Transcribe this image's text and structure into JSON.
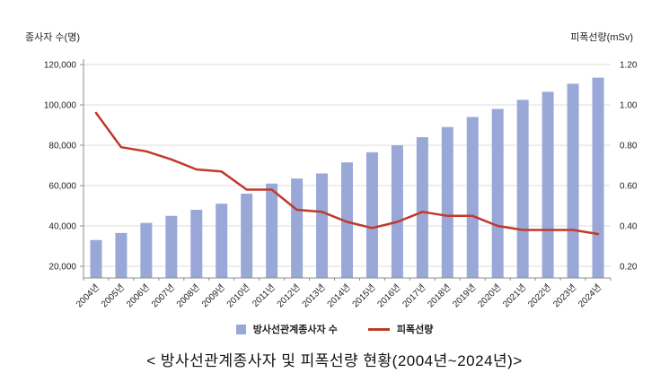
{
  "colors": {
    "bar": "#9aa8d8",
    "line": "#c0392b",
    "grid": "#dcdcdc",
    "axis": "#8c8c8c",
    "text": "#1f1f1f"
  },
  "chart_data": {
    "type": "bar+line combo",
    "title": "< 방사선관계종사자 및 피폭선량 현황(2004년~2024년)>",
    "categories": [
      "2004년",
      "2005년",
      "2006년",
      "2007년",
      "2008년",
      "2009년",
      "2010년",
      "2011년",
      "2012년",
      "2013년",
      "2014년",
      "2015년",
      "2016년",
      "2017년",
      "2018년",
      "2019년",
      "2020년",
      "2021년",
      "2022년",
      "2023년",
      "2024년"
    ],
    "series": [
      {
        "name": "방사선관계종사자 수",
        "type": "bar",
        "axis": "left",
        "color": "#9aa8d8",
        "values": [
          33000,
          36500,
          41500,
          45000,
          48000,
          51000,
          56000,
          61000,
          63500,
          66000,
          71500,
          76500,
          80000,
          84000,
          89000,
          94000,
          98000,
          102500,
          106500,
          110500,
          113500
        ]
      },
      {
        "name": "피폭선량",
        "type": "line",
        "axis": "right",
        "color": "#c0392b",
        "values": [
          0.96,
          0.79,
          0.77,
          0.73,
          0.68,
          0.67,
          0.58,
          0.58,
          0.48,
          0.47,
          0.42,
          0.39,
          0.42,
          0.47,
          0.45,
          0.45,
          0.4,
          0.38,
          0.38,
          0.38,
          0.36
        ]
      }
    ],
    "left_axis": {
      "title": "종사자 수(명)",
      "ticks": [
        "20,000",
        "40,000",
        "60,000",
        "80,000",
        "100,000",
        "120,000"
      ],
      "tick_values": [
        20000,
        40000,
        60000,
        80000,
        100000,
        120000
      ],
      "min": 20000,
      "max": 120000
    },
    "right_axis": {
      "title": "피폭선량(mSv)",
      "ticks": [
        "0.20",
        "0.40",
        "0.60",
        "0.80",
        "1.00",
        "1.20"
      ],
      "tick_values": [
        0.2,
        0.4,
        0.6,
        0.8,
        1.0,
        1.2
      ],
      "min": 0.2,
      "max": 1.2
    },
    "legend_position": "bottom",
    "grid": "horizontal"
  }
}
